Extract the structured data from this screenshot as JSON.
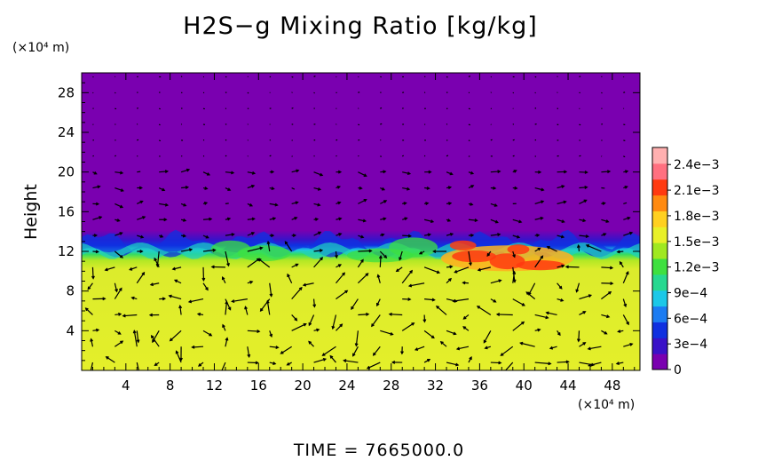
{
  "chart_data": {
    "type": "heatmap",
    "title": "H2S−g Mixing Ratio [kg/kg]",
    "ylabel": "Height",
    "x_unit": "(×10⁴ m)",
    "y_unit": "(×10⁴ m)",
    "xlim": [
      0,
      50.5
    ],
    "ylim": [
      0,
      30
    ],
    "x_ticks": [
      "4",
      "8",
      "12",
      "16",
      "20",
      "24",
      "28",
      "32",
      "36",
      "40",
      "44",
      "48"
    ],
    "y_ticks": [
      "4",
      "8",
      "12",
      "16",
      "20",
      "24",
      "28"
    ],
    "colorbar": {
      "min": 0,
      "max": 0.0026,
      "labels": [
        "0",
        "3e−4",
        "6e−4",
        "9e−4",
        "1.2e−3",
        "1.5e−3",
        "1.8e−3",
        "2.1e−3",
        "2.4e−3"
      ],
      "label_values": [
        0,
        0.0003,
        0.0006,
        0.0009,
        0.0012,
        0.0015,
        0.0018,
        0.0021,
        0.0024
      ],
      "colors": [
        "#7a00b0",
        "#3a12c8",
        "#1030e0",
        "#1c7cf2",
        "#1cc8e8",
        "#26d890",
        "#3ee040",
        "#a0e820",
        "#e8f028",
        "#ffd020",
        "#ff8a10",
        "#ff3a10",
        "#ff7080",
        "#ffb0b0"
      ]
    },
    "fields": {
      "background_value": 0,
      "lower_layer_value": 0.00175,
      "interface_height_approx": 12.5,
      "peak_value_region": {
        "x": [
          33,
          45
        ],
        "y": [
          10,
          12.5
        ],
        "value": 0.0022
      }
    },
    "vectors": "wind vectors drawn over the field"
  },
  "time_label": "TIME  =  7665000.0"
}
